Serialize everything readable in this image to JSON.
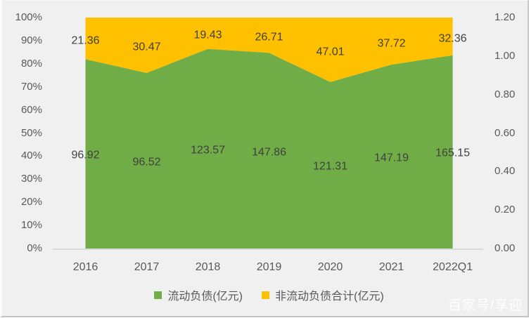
{
  "chart_data": {
    "type": "area",
    "subtype": "stacked-100-percent",
    "categories": [
      "2016",
      "2017",
      "2018",
      "2019",
      "2020",
      "2021",
      "2022Q1"
    ],
    "series": [
      {
        "name": "流动负债(亿元)",
        "color": "#70AD47",
        "values": [
          96.92,
          96.52,
          123.57,
          147.86,
          121.31,
          147.19,
          165.15
        ]
      },
      {
        "name": "非流动负债合计(亿元)",
        "color": "#FFC000",
        "values": [
          21.36,
          30.47,
          19.43,
          26.71,
          47.01,
          37.72,
          32.36
        ]
      }
    ],
    "data_labels_shown": true,
    "left_axis": {
      "ticks": [
        "0%",
        "10%",
        "20%",
        "30%",
        "40%",
        "50%",
        "60%",
        "70%",
        "80%",
        "90%",
        "100%"
      ],
      "min": 0,
      "max": 1
    },
    "right_axis": {
      "ticks": [
        "0.00",
        "0.20",
        "0.40",
        "0.60",
        "0.80",
        "1.00",
        "1.20"
      ],
      "min": 0,
      "max": 1.2
    },
    "grid": false,
    "legend_position": "bottom",
    "title": ""
  },
  "colors": {
    "background": "#f0f0f0",
    "axis_line": "#d6d6d6",
    "axis_text": "#595959",
    "data_label_text": "#404040"
  },
  "watermark": "百家号/享迎"
}
